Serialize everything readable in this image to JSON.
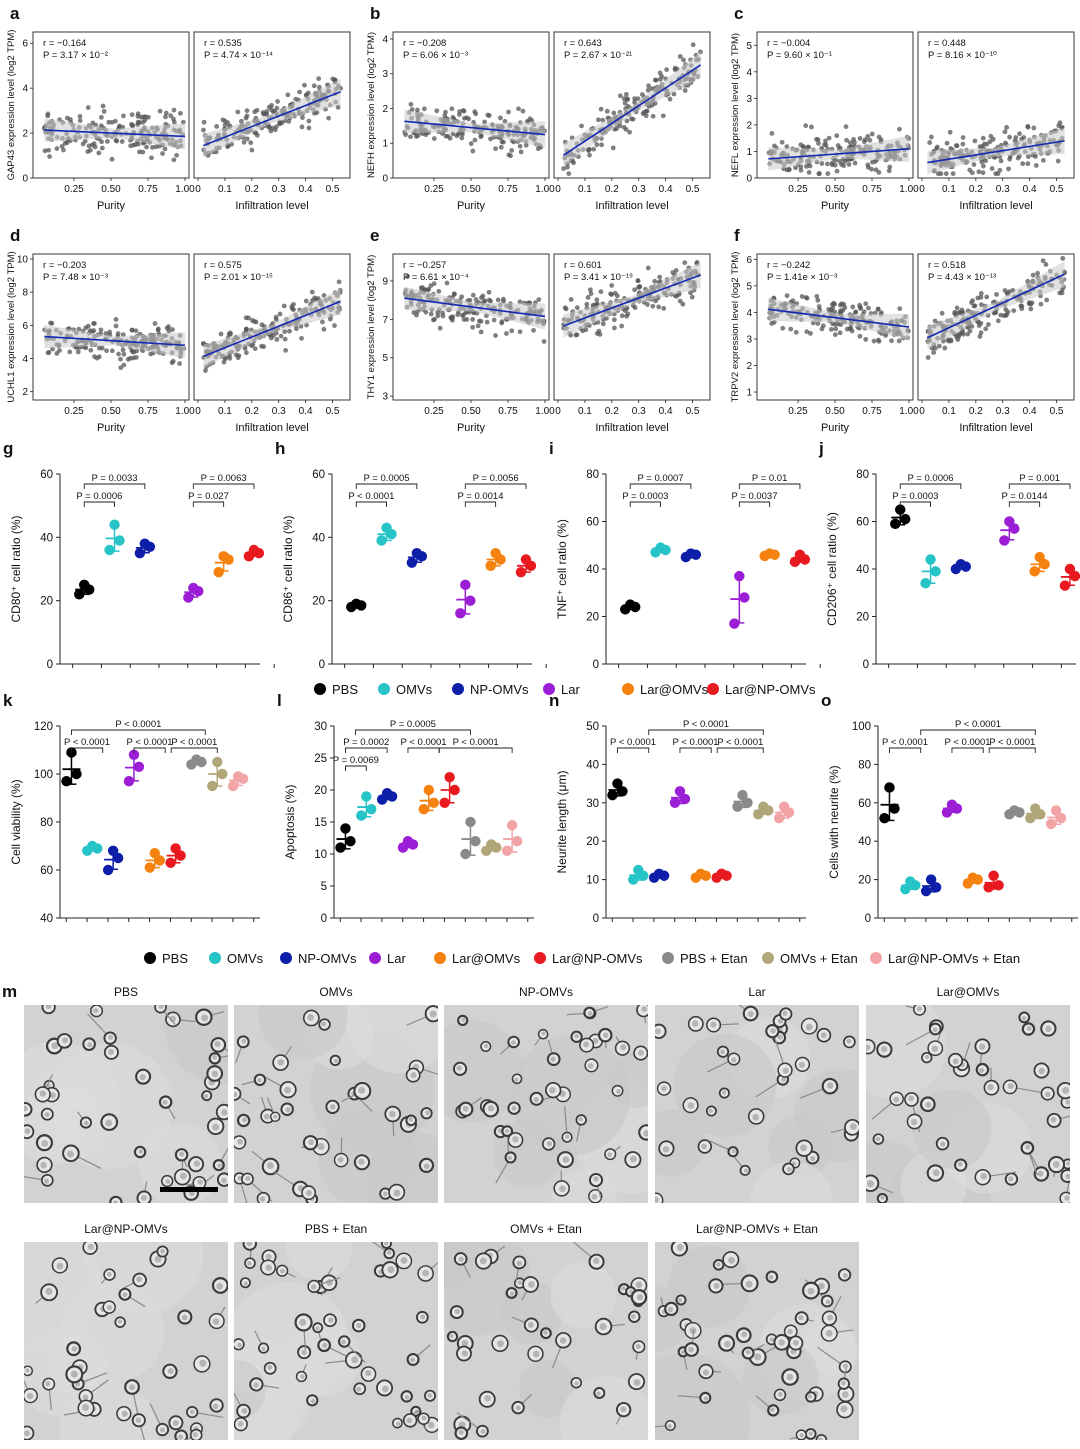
{
  "colors": {
    "PBS": "#000000",
    "OMVs": "#27c4c7",
    "NP-OMVs": "#0d1ea8",
    "Lar": "#9b1ed6",
    "Lar@OMVs": "#f5820f",
    "Lar@NP-OMVs": "#e8191f",
    "PBS + Etan": "#8a8a8a",
    "OMVs + Etan": "#b0a679",
    "Lar@NP-OMVs + Etan": "#f2a3a6",
    "fitline": "#1428b4",
    "scatter": "#555555",
    "band": "#c8c8c8"
  },
  "legend1": [
    "PBS",
    "OMVs",
    "NP-OMVs",
    "Lar",
    "Lar@OMVs",
    "Lar@NP-OMVs"
  ],
  "legend2": [
    "PBS",
    "OMVs",
    "NP-OMVs",
    "Lar",
    "Lar@OMVs",
    "Lar@NP-OMVs",
    "PBS + Etan",
    "OMVs + Etan",
    "Lar@NP-OMVs + Etan"
  ],
  "chart_data": [
    {
      "panel": "a",
      "type": "scatter",
      "gene": "GAP43",
      "ylabel": "GAP43 expression level (log2 TPM)",
      "ylim": [
        0,
        6.5
      ],
      "yticks": [
        0,
        2,
        4,
        6
      ],
      "left": {
        "xlabel": "Purity",
        "xlim": [
          0,
          1.0
        ],
        "xticks": [
          "0.25",
          "0.50",
          "0.75",
          "1.00"
        ],
        "r": "r = −0.164",
        "p": "P = 3.17 × 10⁻²",
        "slope": -0.3,
        "intercept": 2.15,
        "xmin": 0.05,
        "xmax": 1.0
      },
      "right": {
        "xlabel": "Infiltration level",
        "xlim": [
          0,
          0.55
        ],
        "xticks": [
          "0",
          "0.1",
          "0.2",
          "0.3",
          "0.4",
          "0.5"
        ],
        "r": "r = 0.535",
        "p": "P = 4.74 × 10⁻¹⁴",
        "slope": 4.7,
        "intercept": 1.35,
        "xmin": 0.02,
        "xmax": 0.53
      }
    },
    {
      "panel": "b",
      "type": "scatter",
      "gene": "NEFH",
      "ylabel": "NEFH expression level (log2 TPM)",
      "ylim": [
        0,
        4.2
      ],
      "yticks": [
        0,
        1,
        2,
        3,
        4
      ],
      "left": {
        "xlabel": "Purity",
        "xlim": [
          0,
          1.0
        ],
        "xticks": [
          "0.25",
          "0.50",
          "0.75",
          "1.00"
        ],
        "r": "r = −0.208",
        "p": "P = 6.06 × 10⁻³",
        "slope": -0.4,
        "intercept": 1.65,
        "xmin": 0.05,
        "xmax": 1.0
      },
      "right": {
        "xlabel": "Infiltration level",
        "xlim": [
          0,
          0.55
        ],
        "xticks": [
          "0",
          "0.1",
          "0.2",
          "0.3",
          "0.4",
          "0.5"
        ],
        "r": "r = 0.643",
        "p": "P = 2.67 × 10⁻²¹",
        "slope": 5.1,
        "intercept": 0.55,
        "xmin": 0.02,
        "xmax": 0.53
      }
    },
    {
      "panel": "c",
      "type": "scatter",
      "gene": "NEFL",
      "ylabel": "NEFL expression level (log2 TPM)",
      "ylim": [
        0,
        5.5
      ],
      "yticks": [
        0,
        1,
        2,
        3,
        4,
        5
      ],
      "left": {
        "xlabel": "Purity",
        "xlim": [
          0,
          1.0
        ],
        "xticks": [
          "0.25",
          "0.50",
          "0.75",
          "1.00"
        ],
        "r": "r = −0.004",
        "p": "P = 9.60 × 10⁻¹",
        "slope": 0.4,
        "intercept": 0.7,
        "xmin": 0.05,
        "xmax": 1.0
      },
      "right": {
        "xlabel": "Infiltration level",
        "xlim": [
          0,
          0.55
        ],
        "xticks": [
          "0",
          "0.1",
          "0.2",
          "0.3",
          "0.4",
          "0.5"
        ],
        "r": "r = 0.448",
        "p": "P = 8.16 × 10⁻¹⁰",
        "slope": 1.6,
        "intercept": 0.55,
        "xmin": 0.02,
        "xmax": 0.53
      }
    },
    {
      "panel": "d",
      "type": "scatter",
      "gene": "UCHL1",
      "ylabel": "UCHL1 expression level (log2 TPM)",
      "ylim": [
        1.5,
        10.3
      ],
      "yticks": [
        2,
        4,
        6,
        8,
        10
      ],
      "left": {
        "xlabel": "Purity",
        "xlim": [
          0,
          1.0
        ],
        "xticks": [
          "0.25",
          "0.50",
          "0.75",
          "1.00"
        ],
        "r": "r = −0.203",
        "p": "P = 7.48 × 10⁻³",
        "slope": -0.55,
        "intercept": 5.35,
        "xmin": 0.05,
        "xmax": 1.0
      },
      "right": {
        "xlabel": "Infiltration level",
        "xlim": [
          0,
          0.55
        ],
        "xticks": [
          "0",
          "0.1",
          "0.2",
          "0.3",
          "0.4",
          "0.5"
        ],
        "r": "r = 0.575",
        "p": "P = 2.01 × 10⁻¹⁵",
        "slope": 6.5,
        "intercept": 4.0,
        "xmin": 0.02,
        "xmax": 0.53
      }
    },
    {
      "panel": "e",
      "type": "scatter",
      "gene": "THY1",
      "ylabel": "THY1 expression level (log2 TPM)",
      "ylim": [
        2.8,
        10.4
      ],
      "yticks": [
        3,
        5,
        7,
        9
      ],
      "left": {
        "xlabel": "Purity",
        "xlim": [
          0,
          1.0
        ],
        "xticks": [
          "0.25",
          "0.50",
          "0.75",
          "1.00"
        ],
        "r": "r = −0.257",
        "p": "P = 6.61 × 10⁻⁴",
        "slope": -1.0,
        "intercept": 8.15,
        "xmin": 0.05,
        "xmax": 1.0
      },
      "right": {
        "xlabel": "Infiltration level",
        "xlim": [
          0,
          0.55
        ],
        "xticks": [
          "0",
          "0.1",
          "0.2",
          "0.3",
          "0.4",
          "0.5"
        ],
        "r": "r = 0.601",
        "p": "P = 3.41 × 10⁻¹⁹",
        "slope": 5.2,
        "intercept": 6.55,
        "xmin": 0.02,
        "xmax": 0.53
      }
    },
    {
      "panel": "f",
      "type": "scatter",
      "gene": "TRPV2",
      "ylabel": "TRPV2 expression level (log2 TPM)",
      "ylim": [
        0.7,
        6.2
      ],
      "yticks": [
        1,
        2,
        3,
        4,
        5,
        6
      ],
      "left": {
        "xlabel": "Purity",
        "xlim": [
          0,
          1.0
        ],
        "xticks": [
          "0.25",
          "0.50",
          "0.75",
          "1.00"
        ],
        "r": "r = −0.242",
        "p": "P = 1.41e × 10⁻³",
        "slope": -0.7,
        "intercept": 4.15,
        "xmin": 0.05,
        "xmax": 1.0
      },
      "right": {
        "xlabel": "Infiltration level",
        "xlim": [
          0,
          0.55
        ],
        "xticks": [
          "0",
          "0.1",
          "0.2",
          "0.3",
          "0.4",
          "0.5"
        ],
        "r": "r = 0.518",
        "p": "P = 4.43 × 10⁻¹³",
        "slope": 4.7,
        "intercept": 2.95,
        "xmin": 0.02,
        "xmax": 0.53
      }
    },
    {
      "panel": "g",
      "type": "dot",
      "ylabel": "CD80⁺ cell ratio (%)",
      "ylim": [
        0,
        60
      ],
      "yticks": [
        0,
        20,
        40,
        60
      ],
      "groups": 6,
      "points": [
        [
          22,
          23.5,
          25
        ],
        [
          36,
          39,
          44
        ],
        [
          35,
          37,
          38
        ],
        [
          21,
          23,
          24
        ],
        [
          29,
          33,
          34
        ],
        [
          34,
          35,
          36
        ]
      ],
      "brackets": [
        {
          "a": 0,
          "b": 1,
          "label": "P = 0.0006",
          "level": 0
        },
        {
          "a": 0,
          "b": 2,
          "label": "P = 0.0033",
          "level": 1
        },
        {
          "a": 3,
          "b": 4,
          "label": "P = 0.027",
          "level": 0
        },
        {
          "a": 3,
          "b": 5,
          "label": "P = 0.0063",
          "level": 1
        }
      ]
    },
    {
      "panel": "h",
      "type": "dot",
      "ylabel": "CD86⁺ cell ratio (%)",
      "ylim": [
        0,
        60
      ],
      "yticks": [
        0,
        20,
        40,
        60
      ],
      "groups": 6,
      "points": [
        [
          18,
          18.5,
          19
        ],
        [
          39,
          41,
          43
        ],
        [
          32,
          34,
          35
        ],
        [
          16,
          20,
          25
        ],
        [
          31,
          33,
          35
        ],
        [
          29,
          31,
          33
        ]
      ],
      "brackets": [
        {
          "a": 0,
          "b": 1,
          "label": "P < 0.0001",
          "level": 0
        },
        {
          "a": 0,
          "b": 2,
          "label": "P = 0.0005",
          "level": 1
        },
        {
          "a": 3,
          "b": 4,
          "label": "P = 0.0014",
          "level": 0
        },
        {
          "a": 3,
          "b": 5,
          "label": "P = 0.0056",
          "level": 1
        }
      ]
    },
    {
      "panel": "i",
      "type": "dot",
      "ylabel": "TNF⁺ cell ratio (%)",
      "ylim": [
        0,
        80
      ],
      "yticks": [
        0,
        20,
        40,
        60,
        80
      ],
      "groups": 6,
      "points": [
        [
          23,
          24,
          25
        ],
        [
          47,
          48,
          49
        ],
        [
          45,
          46,
          46.5
        ],
        [
          17,
          28,
          37
        ],
        [
          45.5,
          46,
          46.5
        ],
        [
          43,
          44,
          46
        ]
      ],
      "brackets": [
        {
          "a": 0,
          "b": 1,
          "label": "P = 0.0003",
          "level": 0
        },
        {
          "a": 0,
          "b": 2,
          "label": "P = 0.0007",
          "level": 1
        },
        {
          "a": 3,
          "b": 4,
          "label": "P = 0.0037",
          "level": 0
        },
        {
          "a": 3,
          "b": 5,
          "label": "P = 0.01",
          "level": 1
        }
      ]
    },
    {
      "panel": "j",
      "type": "dot",
      "ylabel": "CD206⁺ cell ratio (%)",
      "ylim": [
        0,
        80
      ],
      "yticks": [
        0,
        20,
        40,
        60,
        80
      ],
      "groups": 6,
      "points": [
        [
          59,
          61,
          65
        ],
        [
          34,
          39,
          44
        ],
        [
          40,
          41,
          42
        ],
        [
          52,
          57,
          60
        ],
        [
          39,
          42,
          45
        ],
        [
          33,
          37,
          40
        ]
      ],
      "brackets": [
        {
          "a": 0,
          "b": 1,
          "label": "P = 0.0003",
          "level": 0
        },
        {
          "a": 0,
          "b": 2,
          "label": "P = 0.0006",
          "level": 1
        },
        {
          "a": 3,
          "b": 4,
          "label": "P = 0.0144",
          "level": 0
        },
        {
          "a": 3,
          "b": 5,
          "label": "P = 0.001",
          "level": 1
        }
      ]
    },
    {
      "panel": "k",
      "type": "dot",
      "ylabel": "Cell viability (%)",
      "ylim": [
        40,
        120
      ],
      "yticks": [
        40,
        60,
        80,
        100,
        120
      ],
      "groups": 9,
      "points": [
        [
          97,
          100,
          109
        ],
        [
          68,
          69,
          70
        ],
        [
          60,
          65,
          68
        ],
        [
          97,
          103,
          108
        ],
        [
          61,
          64,
          67
        ],
        [
          63,
          66,
          69
        ],
        [
          104,
          105,
          106
        ],
        [
          95,
          100,
          105
        ],
        [
          95,
          98,
          99
        ]
      ]
    },
    {
      "panel": "l",
      "type": "dot",
      "ylabel": "Apoptosis (%)",
      "ylim": [
        0,
        30
      ],
      "yticks": [
        0,
        5,
        10,
        15,
        20,
        25,
        30
      ],
      "groups": 9,
      "points": [
        [
          11,
          12,
          14
        ],
        [
          16,
          17,
          19
        ],
        [
          18.5,
          19,
          19.5
        ],
        [
          11,
          11.5,
          12
        ],
        [
          17,
          18,
          20
        ],
        [
          18,
          20,
          22
        ],
        [
          10,
          12,
          15
        ],
        [
          10.5,
          11,
          11.5
        ],
        [
          10.5,
          12,
          14.5
        ]
      ]
    },
    {
      "panel": "n",
      "type": "dot",
      "ylabel": "Neurite length (μm)",
      "ylim": [
        0,
        50
      ],
      "yticks": [
        0,
        10,
        20,
        30,
        40,
        50
      ],
      "groups": 9,
      "points": [
        [
          32,
          33,
          35
        ],
        [
          10,
          11,
          12.5
        ],
        [
          10.5,
          11,
          11.5
        ],
        [
          30,
          31,
          33
        ],
        [
          10.5,
          11,
          11.5
        ],
        [
          10.5,
          11,
          11.5
        ],
        [
          29,
          30,
          32
        ],
        [
          27,
          28,
          29
        ],
        [
          26,
          27.5,
          29
        ]
      ]
    },
    {
      "panel": "o",
      "type": "dot",
      "ylabel": "Cells with neurite (%)",
      "ylim": [
        0,
        100
      ],
      "yticks": [
        0,
        20,
        40,
        60,
        80,
        100
      ],
      "groups": 9,
      "points": [
        [
          52,
          57,
          68
        ],
        [
          15,
          17,
          19
        ],
        [
          14,
          16,
          20
        ],
        [
          55,
          57,
          59
        ],
        [
          18,
          20,
          21
        ],
        [
          16,
          17,
          22
        ],
        [
          54,
          55,
          56
        ],
        [
          52,
          54,
          57
        ],
        [
          49,
          52,
          56
        ]
      ]
    }
  ],
  "brackets_kn": {
    "k": [
      {
        "label": "P < 0.0001",
        "kind": "a"
      },
      {
        "label": "P < 0.0001",
        "kind": "b"
      },
      {
        "label": "P < 0.0001",
        "kind": "c"
      },
      {
        "label": "P < 0.0001",
        "kind": "top"
      }
    ],
    "l": [
      {
        "label": "P = 0.0069"
      },
      {
        "label": "P = 0.0002"
      },
      {
        "label": "P = 0.0005"
      },
      {
        "label": "P < 0.0001"
      },
      {
        "label": "P < 0.0001"
      }
    ],
    "n": [
      {
        "label": "P < 0.0001"
      },
      {
        "label": "P < 0.0001"
      },
      {
        "label": "P < 0.0001"
      },
      {
        "label": "P < 0.0001"
      }
    ],
    "o": [
      {
        "label": "P < 0.0001"
      },
      {
        "label": "P < 0.0001"
      },
      {
        "label": "P < 0.0001"
      },
      {
        "label": "P < 0.0001"
      }
    ]
  },
  "panel_m": {
    "letter": "m",
    "tiles": [
      "PBS",
      "OMVs",
      "NP-OMVs",
      "Lar",
      "Lar@OMVs",
      "Lar@NP-OMVs",
      "PBS + Etan",
      "OMVs + Etan",
      "Lar@NP-OMVs + Etan"
    ]
  }
}
